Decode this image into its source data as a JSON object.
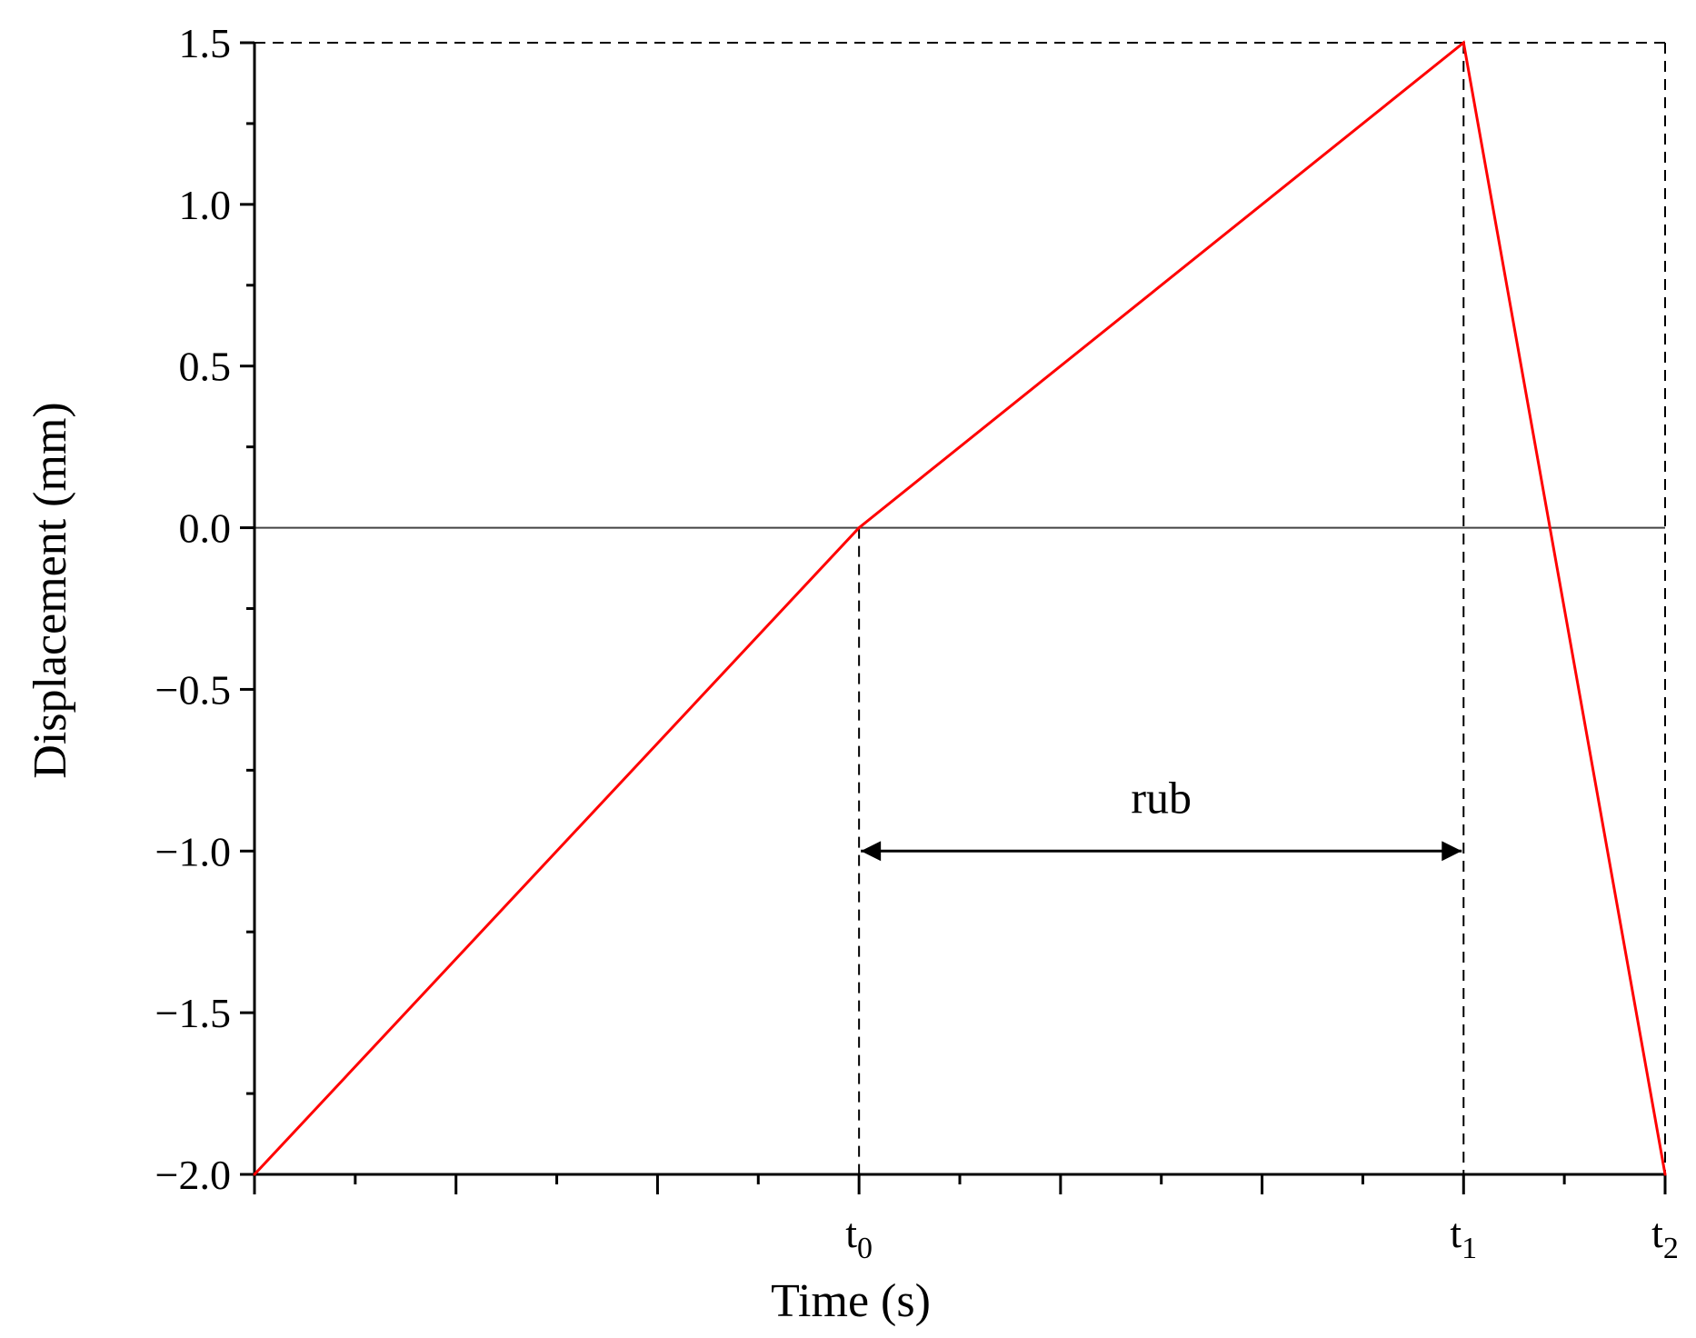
{
  "chart_data": {
    "type": "line",
    "title": "",
    "xlabel": "Time (s)",
    "ylabel": "Displacement (mm)",
    "ylim": [
      -2.0,
      1.5
    ],
    "yticks": [
      {
        "value": 1.5,
        "label": "1.5"
      },
      {
        "value": 1.0,
        "label": "1.0"
      },
      {
        "value": 0.5,
        "label": "0.5"
      },
      {
        "value": 0.0,
        "label": "0.0"
      },
      {
        "value": -0.5,
        "label": "−0.5"
      },
      {
        "value": -1.0,
        "label": "−1.0"
      },
      {
        "value": -1.5,
        "label": "−1.5"
      },
      {
        "value": -2.0,
        "label": "−2.0"
      }
    ],
    "xlim": [
      0,
      7
    ],
    "xticks": [
      {
        "value": 3,
        "base": "t",
        "sub": "0"
      },
      {
        "value": 6,
        "base": "t",
        "sub": "1"
      },
      {
        "value": 7,
        "base": "t",
        "sub": "2"
      }
    ],
    "series": [
      {
        "color": "#ff0000",
        "x": [
          0,
          3,
          6,
          7
        ],
        "y": [
          -2.0,
          0.0,
          1.5,
          -2.0
        ]
      }
    ],
    "annotations": [
      {
        "text": "rub",
        "x_from": 3,
        "x_to": 6,
        "y": -1.0
      }
    ],
    "grid": false
  }
}
